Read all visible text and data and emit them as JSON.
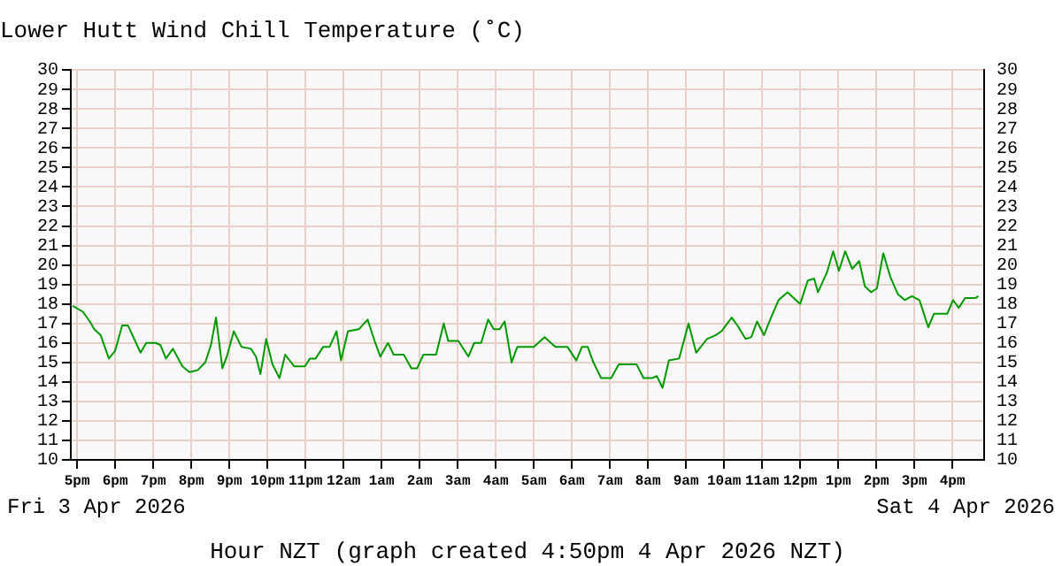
{
  "chart_data": {
    "type": "line",
    "title": "Lower Hutt Wind Chill Temperature (˚C)",
    "xlabel": "Hour NZT (graph created 4:50pm 4 Apr 2026 NZT)",
    "annotations": [
      "Fri 3 Apr 2026",
      "Sat 4 Apr 2026"
    ],
    "x": [
      "2026-04-03T16:53",
      "2026-04-03T17:09",
      "2026-04-03T17:20",
      "2026-04-03T17:27",
      "2026-04-03T17:37",
      "2026-04-03T17:50",
      "2026-04-03T18:00",
      "2026-04-03T18:11",
      "2026-04-03T18:20",
      "2026-04-03T18:40",
      "2026-04-03T18:49",
      "2026-04-03T19:04",
      "2026-04-03T19:11",
      "2026-04-03T19:20",
      "2026-04-03T19:31",
      "2026-04-03T19:46",
      "2026-04-03T19:57",
      "2026-04-03T20:10",
      "2026-04-03T20:22",
      "2026-04-03T20:31",
      "2026-04-03T20:39",
      "2026-04-03T20:49",
      "2026-04-03T20:56",
      "2026-04-03T21:07",
      "2026-04-03T21:19",
      "2026-04-03T21:34",
      "2026-04-03T21:42",
      "2026-04-03T21:49",
      "2026-04-03T21:58",
      "2026-04-03T22:08",
      "2026-04-03T22:19",
      "2026-04-03T22:28",
      "2026-04-03T22:42",
      "2026-04-03T22:59",
      "2026-04-03T23:07",
      "2026-04-03T23:16",
      "2026-04-03T23:28",
      "2026-04-03T23:38",
      "2026-04-03T23:49",
      "2026-04-03T23:56",
      "2026-04-04T00:07",
      "2026-04-04T00:24",
      "2026-04-04T00:38",
      "2026-04-04T00:49",
      "2026-04-04T00:58",
      "2026-04-04T01:10",
      "2026-04-04T01:19",
      "2026-04-04T01:35",
      "2026-04-04T01:47",
      "2026-04-04T01:56",
      "2026-04-04T02:06",
      "2026-04-04T02:26",
      "2026-04-04T02:38",
      "2026-04-04T02:45",
      "2026-04-04T03:01",
      "2026-04-04T03:17",
      "2026-04-04T03:26",
      "2026-04-04T03:37",
      "2026-04-04T03:48",
      "2026-04-04T03:57",
      "2026-04-04T04:06",
      "2026-04-04T04:14",
      "2026-04-04T04:25",
      "2026-04-04T04:34",
      "2026-04-04T05:00",
      "2026-04-04T05:17",
      "2026-04-04T05:34",
      "2026-04-04T05:53",
      "2026-04-04T06:07",
      "2026-04-04T06:16",
      "2026-04-04T06:25",
      "2026-04-04T06:34",
      "2026-04-04T06:46",
      "2026-04-04T07:02",
      "2026-04-04T07:14",
      "2026-04-04T07:42",
      "2026-04-04T07:53",
      "2026-04-04T08:07",
      "2026-04-04T08:14",
      "2026-04-04T08:23",
      "2026-04-04T08:33",
      "2026-04-04T08:49",
      "2026-04-04T09:04",
      "2026-04-04T09:16",
      "2026-04-04T09:33",
      "2026-04-04T09:47",
      "2026-04-04T09:56",
      "2026-04-04T10:12",
      "2026-04-04T10:21",
      "2026-04-04T10:34",
      "2026-04-04T10:43",
      "2026-04-04T10:52",
      "2026-04-04T11:03",
      "2026-04-04T11:14",
      "2026-04-04T11:26",
      "2026-04-04T11:40",
      "2026-04-04T12:00",
      "2026-04-04T12:12",
      "2026-04-04T12:22",
      "2026-04-04T12:28",
      "2026-04-04T12:42",
      "2026-04-04T12:52",
      "2026-04-04T13:01",
      "2026-04-04T13:11",
      "2026-04-04T13:22",
      "2026-04-04T13:33",
      "2026-04-04T13:42",
      "2026-04-04T13:52",
      "2026-04-04T14:01",
      "2026-04-04T14:11",
      "2026-04-04T14:22",
      "2026-04-04T14:34",
      "2026-04-04T14:45",
      "2026-04-04T14:56",
      "2026-04-04T15:08",
      "2026-04-04T15:22",
      "2026-04-04T15:31",
      "2026-04-04T15:52",
      "2026-04-04T16:01",
      "2026-04-04T16:10",
      "2026-04-04T16:20",
      "2026-04-04T16:36",
      "2026-04-04T16:41"
    ],
    "series": [
      {
        "color": "#009900",
        "values": [
          17.9,
          17.6,
          17.1,
          16.7,
          16.4,
          15.2,
          15.6,
          16.9,
          16.9,
          15.5,
          16.0,
          16.0,
          15.9,
          15.2,
          15.7,
          14.8,
          14.5,
          14.6,
          15.0,
          15.9,
          17.3,
          14.7,
          15.3,
          16.6,
          15.8,
          15.7,
          15.3,
          14.4,
          16.2,
          14.9,
          14.2,
          15.4,
          14.8,
          14.8,
          15.2,
          15.2,
          15.8,
          15.8,
          16.6,
          15.1,
          16.6,
          16.7,
          17.2,
          16.1,
          15.3,
          16.0,
          15.4,
          15.4,
          14.7,
          14.7,
          15.4,
          15.4,
          17.0,
          16.1,
          16.1,
          15.3,
          16.0,
          16.0,
          17.2,
          16.7,
          16.7,
          17.1,
          15.0,
          15.8,
          15.8,
          16.3,
          15.8,
          15.8,
          15.1,
          15.8,
          15.8,
          15.0,
          14.2,
          14.2,
          14.9,
          14.9,
          14.2,
          14.2,
          14.3,
          13.7,
          15.1,
          15.2,
          17.0,
          15.5,
          16.2,
          16.4,
          16.6,
          17.3,
          16.9,
          16.2,
          16.3,
          17.1,
          16.4,
          17.3,
          18.2,
          18.6,
          18.0,
          19.2,
          19.3,
          18.6,
          19.6,
          20.7,
          19.7,
          20.7,
          19.8,
          20.2,
          18.9,
          18.6,
          18.8,
          20.6,
          19.4,
          18.5,
          18.2,
          18.4,
          18.2,
          16.8,
          17.5,
          17.5,
          18.2,
          17.8,
          18.3,
          18.3,
          18.4
        ]
      }
    ],
    "xlim": [
      "2026-04-03T16:50",
      "2026-04-04T16:50"
    ],
    "xticks": [
      {
        "value": "2026-04-03T17:00",
        "label": "5pm"
      },
      {
        "value": "2026-04-03T18:00",
        "label": "6pm"
      },
      {
        "value": "2026-04-03T19:00",
        "label": "7pm"
      },
      {
        "value": "2026-04-03T20:00",
        "label": "8pm"
      },
      {
        "value": "2026-04-03T21:00",
        "label": "9pm"
      },
      {
        "value": "2026-04-03T22:00",
        "label": "10pm"
      },
      {
        "value": "2026-04-03T23:00",
        "label": "11pm"
      },
      {
        "value": "2026-04-04T00:00",
        "label": "12am"
      },
      {
        "value": "2026-04-04T01:00",
        "label": "1am"
      },
      {
        "value": "2026-04-04T02:00",
        "label": "2am"
      },
      {
        "value": "2026-04-04T03:00",
        "label": "3am"
      },
      {
        "value": "2026-04-04T04:00",
        "label": "4am"
      },
      {
        "value": "2026-04-04T05:00",
        "label": "5am"
      },
      {
        "value": "2026-04-04T06:00",
        "label": "6am"
      },
      {
        "value": "2026-04-04T07:00",
        "label": "7am"
      },
      {
        "value": "2026-04-04T08:00",
        "label": "8am"
      },
      {
        "value": "2026-04-04T09:00",
        "label": "9am"
      },
      {
        "value": "2026-04-04T10:00",
        "label": "10am"
      },
      {
        "value": "2026-04-04T11:00",
        "label": "11am"
      },
      {
        "value": "2026-04-04T12:00",
        "label": "12pm"
      },
      {
        "value": "2026-04-04T13:00",
        "label": "1pm"
      },
      {
        "value": "2026-04-04T14:00",
        "label": "2pm"
      },
      {
        "value": "2026-04-04T15:00",
        "label": "3pm"
      },
      {
        "value": "2026-04-04T16:00",
        "label": "4pm"
      }
    ],
    "ylim": [
      10,
      30
    ],
    "yticks": [
      10,
      11,
      12,
      13,
      14,
      15,
      16,
      17,
      18,
      19,
      20,
      21,
      22,
      23,
      24,
      25,
      26,
      27,
      28,
      29,
      30
    ],
    "y2lim": [
      10,
      30
    ],
    "y2ticks": [
      10,
      11,
      12,
      13,
      14,
      15,
      16,
      17,
      18,
      19,
      20,
      21,
      22,
      23,
      24,
      25,
      26,
      27,
      28,
      29,
      30
    ],
    "grid": true,
    "marker": "none",
    "line_style": "solid"
  }
}
